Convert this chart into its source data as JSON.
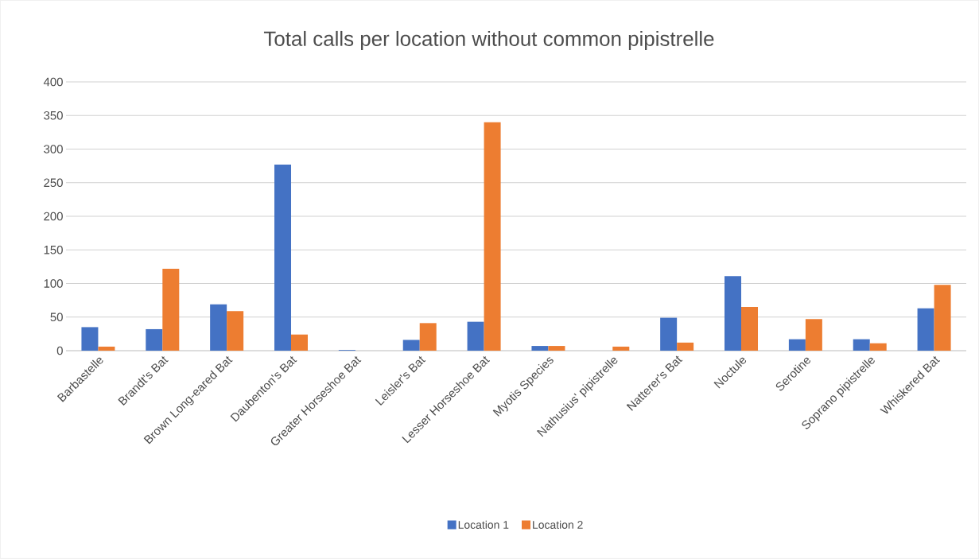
{
  "chart_data": {
    "type": "bar",
    "title": "Total calls per location without common pipistrelle",
    "categories": [
      "Barbastelle",
      "Brandt's Bat",
      "Brown Long-eared Bat",
      "Daubenton's Bat",
      "Greater Horseshoe Bat",
      "Leisler's Bat",
      "Lesser Horseshoe Bat",
      "Myotis Species",
      "Nathusius' pipistrelle",
      "Natterer's Bat",
      "Noctule",
      "Serotine",
      "Soprano pipistrelle",
      "Whiskered Bat"
    ],
    "series": [
      {
        "name": "Location 1",
        "color": "#4472c4",
        "values": [
          35,
          32,
          69,
          277,
          1,
          16,
          43,
          7,
          0,
          49,
          111,
          17,
          17,
          63
        ]
      },
      {
        "name": "Location 2",
        "color": "#ed7d31",
        "values": [
          6,
          122,
          59,
          24,
          0,
          41,
          340,
          7,
          6,
          12,
          65,
          47,
          11,
          98
        ]
      }
    ],
    "ylim": [
      0,
      400
    ],
    "yticks": [
      0,
      50,
      100,
      150,
      200,
      250,
      300,
      350,
      400
    ],
    "grid": "y",
    "legend": "bottom"
  }
}
